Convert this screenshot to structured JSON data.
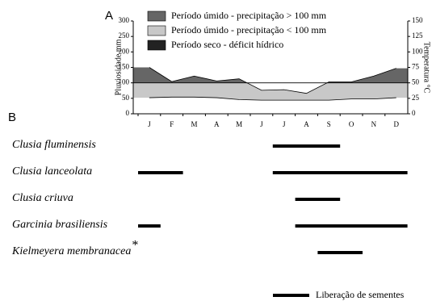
{
  "chart_data": [
    {
      "type": "climate",
      "panel": "A",
      "categories": [
        "J",
        "F",
        "M",
        "A",
        "M",
        "J",
        "J",
        "A",
        "S",
        "O",
        "N",
        "D"
      ],
      "series": [
        {
          "name": "Pluviosidade mm",
          "axis": "y",
          "color": "#000000",
          "values": [
            150,
            104,
            122,
            106,
            113,
            76,
            78,
            66,
            103,
            103,
            122,
            147
          ]
        },
        {
          "name": "Temperatura °C",
          "axis": "y2",
          "color": "#000000",
          "values": [
            26,
            27,
            27,
            26,
            23,
            22,
            22,
            22,
            22,
            24,
            24,
            26
          ]
        }
      ],
      "ylabel": "Pluviosidade mm",
      "y2label": "Temperatura °C",
      "ylim": [
        0,
        300
      ],
      "yticks": [
        0,
        50,
        100,
        150,
        200,
        250,
        300
      ],
      "y2lim": [
        0,
        150
      ],
      "y2ticks": [
        0,
        25,
        50,
        75,
        100,
        125,
        150
      ],
      "threshold": 100,
      "legend": [
        {
          "label": "Período úmido - precipitação > 100 mm",
          "color": "#666666"
        },
        {
          "label": "Período úmido - precipitação < 100 mm",
          "color": "#c8c8c8"
        },
        {
          "label": "Período seco - déficit hídrico",
          "color": "#222222"
        }
      ]
    },
    {
      "type": "timeline",
      "panel": "B",
      "color": "#000000",
      "bars": [
        {
          "species": "Clusia fluminensis",
          "periods": [
            [
              7,
              9
            ]
          ]
        },
        {
          "species": "Clusia lanceolata",
          "periods": [
            [
              1,
              2
            ],
            [
              7,
              12
            ]
          ]
        },
        {
          "species": "Clusia criuva",
          "periods": [
            [
              8,
              9
            ]
          ]
        },
        {
          "species": "Garcinia brasiliensis",
          "periods": [
            [
              1,
              1
            ],
            [
              8,
              12
            ]
          ]
        },
        {
          "species": "Kielmeyera membranacea",
          "marker": "*",
          "periods": [
            [
              9,
              10
            ]
          ]
        }
      ],
      "legend": "Liberação de sementes"
    }
  ]
}
